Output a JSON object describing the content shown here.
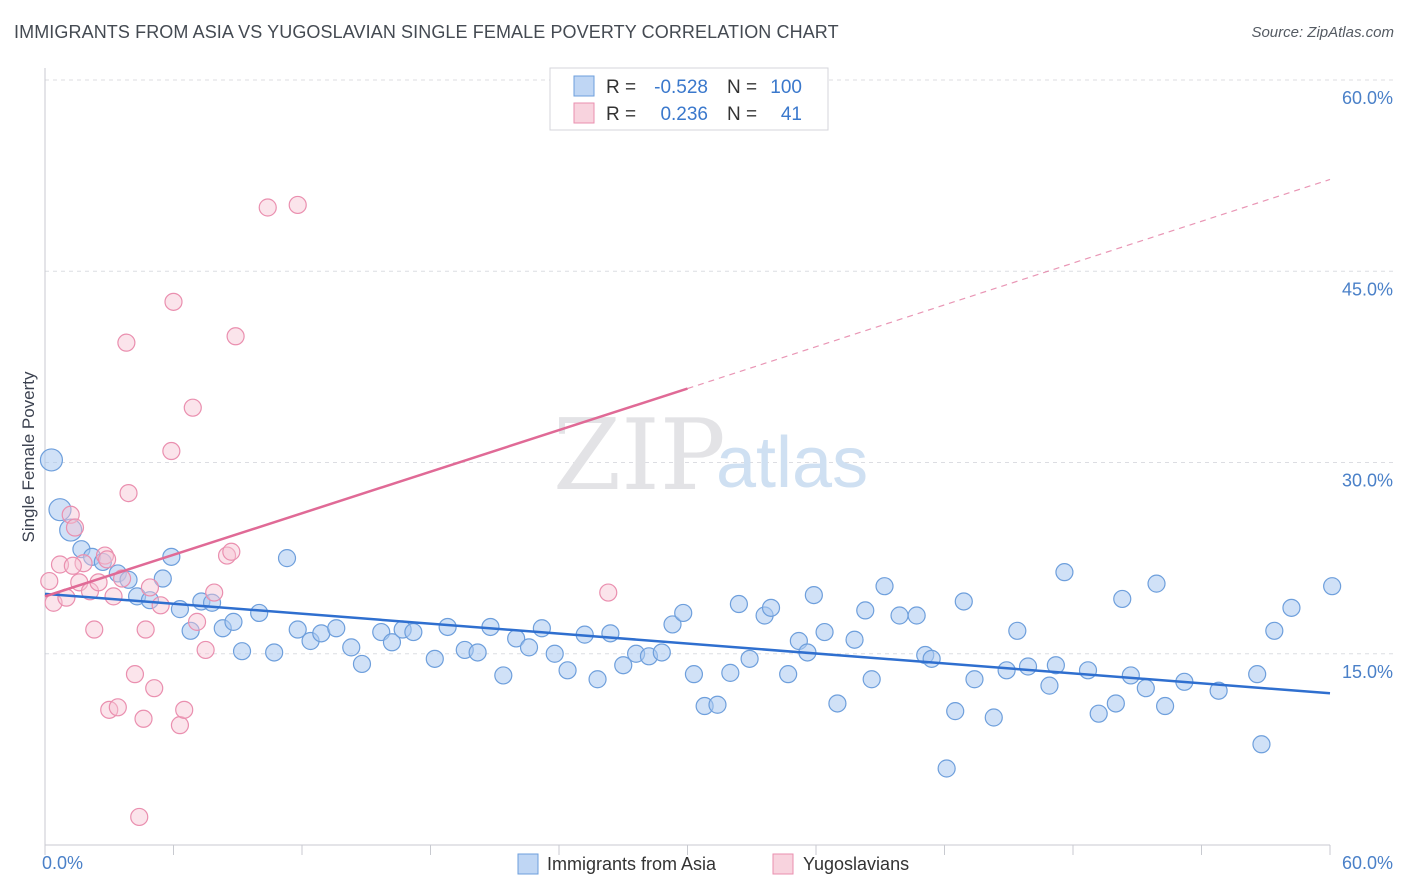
{
  "title": "IMMIGRANTS FROM ASIA VS YUGOSLAVIAN SINGLE FEMALE POVERTY CORRELATION CHART",
  "source": "Source: ZipAtlas.com",
  "watermark": {
    "zip": "ZIP",
    "atlas": "atlas"
  },
  "legend": {
    "r_label": "R =",
    "n_label": "N =",
    "rows": [
      {
        "r": "-0.528",
        "n": "100",
        "color": "#a9c8f0"
      },
      {
        "r": "0.236",
        "n": "41",
        "color": "#f6b8cb"
      }
    ]
  },
  "colors": {
    "blue_fill": "#a9c8f0",
    "blue_stroke": "#6e9fdc",
    "blue_line": "#2f6fcf",
    "pink_fill": "#f6c4d3",
    "pink_stroke": "#ea8faf",
    "pink_line": "#e06a96",
    "grid": "#dcdde2",
    "axis": "#c8cad0",
    "tick_text": "#4a80c8"
  },
  "chart_data": {
    "type": "scatter",
    "xlabel": "",
    "ylabel": "Single Female Poverty",
    "xlim": [
      0,
      60
    ],
    "ylim": [
      0,
      60
    ],
    "x_tick_labels": [
      "0.0%",
      "60.0%"
    ],
    "y_ticks": [
      15,
      30,
      45,
      60
    ],
    "y_tick_labels": [
      "15.0%",
      "30.0%",
      "45.0%",
      "60.0%"
    ],
    "grid": true,
    "legend_position": "top-center",
    "series": [
      {
        "name": "Immigrants from Asia",
        "color": "#a9c8f0",
        "trend": {
          "x0": 0,
          "y0": 19.7,
          "x1": 60,
          "y1": 11.9,
          "dashed_to": null
        },
        "points": [
          [
            0.3,
            30.2
          ],
          [
            0.7,
            26.3
          ],
          [
            1.2,
            24.7
          ],
          [
            1.7,
            23.2
          ],
          [
            2.2,
            22.6
          ],
          [
            2.7,
            22.2
          ],
          [
            3.4,
            21.3
          ],
          [
            3.9,
            20.8
          ],
          [
            4.3,
            19.5
          ],
          [
            4.9,
            19.2
          ],
          [
            5.5,
            20.9
          ],
          [
            5.9,
            22.6
          ],
          [
            6.3,
            18.5
          ],
          [
            6.8,
            16.8
          ],
          [
            7.3,
            19.1
          ],
          [
            7.8,
            19.0
          ],
          [
            8.3,
            17.0
          ],
          [
            8.8,
            17.5
          ],
          [
            9.2,
            15.2
          ],
          [
            10.0,
            18.2
          ],
          [
            10.7,
            15.1
          ],
          [
            11.3,
            22.5
          ],
          [
            11.8,
            16.9
          ],
          [
            12.4,
            16.0
          ],
          [
            12.9,
            16.6
          ],
          [
            13.6,
            17.0
          ],
          [
            14.3,
            15.5
          ],
          [
            14.8,
            14.2
          ],
          [
            15.7,
            16.7
          ],
          [
            16.2,
            15.9
          ],
          [
            16.7,
            16.9
          ],
          [
            17.2,
            16.7
          ],
          [
            18.2,
            14.6
          ],
          [
            18.8,
            17.1
          ],
          [
            19.6,
            15.3
          ],
          [
            20.2,
            15.1
          ],
          [
            20.8,
            17.1
          ],
          [
            21.4,
            13.3
          ],
          [
            22.0,
            16.2
          ],
          [
            22.6,
            15.5
          ],
          [
            23.2,
            17.0
          ],
          [
            23.8,
            15.0
          ],
          [
            24.4,
            13.7
          ],
          [
            25.2,
            16.5
          ],
          [
            25.8,
            13.0
          ],
          [
            26.4,
            16.6
          ],
          [
            27.0,
            14.1
          ],
          [
            27.6,
            15.0
          ],
          [
            28.2,
            14.8
          ],
          [
            28.8,
            15.1
          ],
          [
            29.3,
            17.3
          ],
          [
            29.8,
            18.2
          ],
          [
            30.3,
            13.4
          ],
          [
            30.8,
            10.9
          ],
          [
            31.4,
            11.0
          ],
          [
            32.0,
            13.5
          ],
          [
            32.4,
            18.9
          ],
          [
            32.9,
            14.6
          ],
          [
            33.6,
            18.0
          ],
          [
            33.9,
            18.6
          ],
          [
            34.7,
            13.4
          ],
          [
            35.2,
            16.0
          ],
          [
            35.6,
            15.1
          ],
          [
            35.9,
            19.6
          ],
          [
            36.4,
            16.7
          ],
          [
            37.0,
            11.1
          ],
          [
            37.8,
            16.1
          ],
          [
            38.3,
            18.4
          ],
          [
            38.6,
            13.0
          ],
          [
            39.2,
            20.3
          ],
          [
            39.9,
            18.0
          ],
          [
            40.7,
            18.0
          ],
          [
            41.1,
            14.9
          ],
          [
            41.4,
            14.6
          ],
          [
            42.1,
            6.0
          ],
          [
            42.5,
            10.5
          ],
          [
            42.9,
            19.1
          ],
          [
            43.4,
            13.0
          ],
          [
            44.3,
            10.0
          ],
          [
            44.9,
            13.7
          ],
          [
            45.4,
            16.8
          ],
          [
            45.9,
            14.0
          ],
          [
            46.9,
            12.5
          ],
          [
            47.2,
            14.1
          ],
          [
            47.6,
            21.4
          ],
          [
            48.7,
            13.7
          ],
          [
            49.2,
            10.3
          ],
          [
            50.0,
            11.1
          ],
          [
            50.3,
            19.3
          ],
          [
            50.7,
            13.3
          ],
          [
            51.4,
            12.3
          ],
          [
            51.9,
            20.5
          ],
          [
            52.3,
            10.9
          ],
          [
            53.2,
            12.8
          ],
          [
            54.8,
            12.1
          ],
          [
            56.6,
            13.4
          ],
          [
            56.8,
            7.9
          ],
          [
            57.4,
            16.8
          ],
          [
            58.2,
            18.6
          ],
          [
            60.1,
            20.3
          ]
        ]
      },
      {
        "name": "Yugoslavians",
        "color": "#f6c4d3",
        "trend": {
          "x0": 0,
          "y0": 19.5,
          "x1": 30,
          "y1": 35.8,
          "dashed_to": [
            60,
            52.2
          ]
        },
        "points": [
          [
            0.2,
            20.7
          ],
          [
            0.4,
            19.0
          ],
          [
            0.7,
            22.0
          ],
          [
            1.0,
            19.4
          ],
          [
            1.2,
            25.9
          ],
          [
            1.4,
            24.9
          ],
          [
            1.6,
            20.6
          ],
          [
            1.8,
            22.1
          ],
          [
            2.1,
            19.9
          ],
          [
            2.3,
            16.9
          ],
          [
            2.5,
            20.6
          ],
          [
            2.8,
            22.7
          ],
          [
            3.0,
            10.6
          ],
          [
            3.2,
            19.5
          ],
          [
            3.4,
            10.8
          ],
          [
            3.6,
            20.9
          ],
          [
            3.8,
            39.4
          ],
          [
            3.9,
            27.6
          ],
          [
            4.2,
            13.4
          ],
          [
            4.4,
            2.2
          ],
          [
            4.6,
            9.9
          ],
          [
            4.7,
            16.9
          ],
          [
            4.9,
            20.2
          ],
          [
            5.1,
            12.3
          ],
          [
            5.4,
            18.8
          ],
          [
            5.9,
            30.9
          ],
          [
            6.0,
            42.6
          ],
          [
            6.3,
            9.4
          ],
          [
            6.5,
            10.6
          ],
          [
            6.9,
            34.3
          ],
          [
            7.1,
            17.5
          ],
          [
            7.5,
            15.3
          ],
          [
            7.9,
            19.8
          ],
          [
            8.5,
            22.7
          ],
          [
            8.7,
            23.0
          ],
          [
            8.9,
            39.9
          ],
          [
            10.4,
            50.0
          ],
          [
            11.8,
            50.2
          ],
          [
            26.3,
            19.8
          ],
          [
            1.3,
            21.9
          ],
          [
            2.9,
            22.4
          ]
        ]
      }
    ]
  },
  "bottom_legend": [
    {
      "label": "Immigrants from Asia",
      "color": "#a9c8f0"
    },
    {
      "label": "Yugoslavians",
      "color": "#f6c4d3"
    }
  ]
}
